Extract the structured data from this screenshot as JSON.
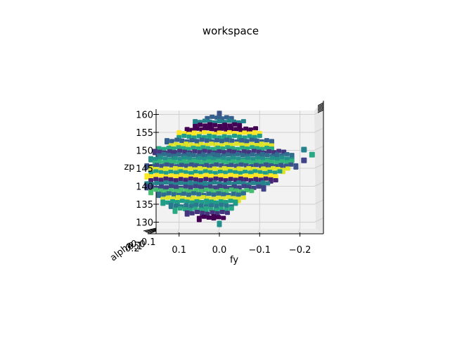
{
  "chart_data": {
    "type": "scatter",
    "projection": "3d",
    "title": "workspace",
    "xlabel": "fy",
    "ylabel": "alpha",
    "zlabel": "zp",
    "colormap": "viridis",
    "grid": true,
    "x_ticks": [
      "0.1",
      "0.0",
      "−0.1",
      "−0.2"
    ],
    "z_ticks": [
      "130",
      "135",
      "140",
      "145",
      "150",
      "155",
      "160"
    ],
    "y_ticks_overlap": [
      "0.2",
      "0.1",
      "0.0",
      "−0.1"
    ],
    "xlim": [
      0.18,
      -0.27
    ],
    "zlim": [
      128,
      161
    ],
    "rows": [
      {
        "z": 160.2,
        "x": [
          0.0,
          0.0
        ],
        "c": 0.25
      },
      {
        "z": 159.1,
        "x": [
          0.03,
          -0.03
        ],
        "c": 0.3
      },
      {
        "z": 158.0,
        "x": [
          0.06,
          -0.06
        ],
        "c": 0.45
      },
      {
        "z": 157.0,
        "x": [
          0.06,
          -0.05
        ],
        "c": 0.0
      },
      {
        "z": 155.9,
        "x": [
          0.08,
          -0.09
        ],
        "c": 0.0
      },
      {
        "z": 154.8,
        "x": [
          0.1,
          -0.1
        ],
        "c": 1.0
      },
      {
        "z": 153.8,
        "x": [
          0.1,
          -0.1
        ],
        "c": 0.55
      },
      {
        "z": 152.7,
        "x": [
          0.13,
          -0.13
        ],
        "c": 0.3
      },
      {
        "z": 151.6,
        "x": [
          0.12,
          -0.13
        ],
        "c": 0.95
      },
      {
        "z": 150.6,
        "x": [
          0.15,
          -0.13
        ],
        "c": 0.6
      },
      {
        "z": 149.6,
        "x": [
          0.16,
          -0.16
        ],
        "c": 0.15
      },
      {
        "z": 148.7,
        "x": [
          0.15,
          -0.18
        ],
        "c": 0.35
      },
      {
        "z": 147.7,
        "x": [
          0.17,
          -0.18
        ],
        "c": 0.5
      },
      {
        "z": 146.8,
        "x": [
          0.16,
          -0.18
        ],
        "c": 0.65
      },
      {
        "z": 145.8,
        "x": [
          0.18,
          -0.19
        ],
        "c": 0.25
      },
      {
        "z": 144.8,
        "x": [
          0.17,
          -0.17
        ],
        "c": 0.95
      },
      {
        "z": 143.9,
        "x": [
          0.17,
          -0.15
        ],
        "c": 0.55
      },
      {
        "z": 142.9,
        "x": [
          0.18,
          -0.14
        ],
        "c": 1.0
      },
      {
        "z": 141.9,
        "x": [
          0.17,
          -0.14
        ],
        "c": 0.1
      },
      {
        "z": 140.8,
        "x": [
          0.18,
          -0.12
        ],
        "c": 0.45
      },
      {
        "z": 139.8,
        "x": [
          0.18,
          -0.11
        ],
        "c": 0.2
      },
      {
        "z": 138.8,
        "x": [
          0.17,
          -0.08
        ],
        "c": 0.7
      },
      {
        "z": 137.8,
        "x": [
          0.15,
          -0.06
        ],
        "c": 0.35
      },
      {
        "z": 136.7,
        "x": [
          0.14,
          -0.06
        ],
        "c": 0.95
      },
      {
        "z": 135.7,
        "x": [
          0.14,
          -0.04
        ],
        "c": 0.55
      },
      {
        "z": 134.6,
        "x": [
          0.12,
          -0.03
        ],
        "c": 0.4
      },
      {
        "z": 133.6,
        "x": [
          0.11,
          -0.03
        ],
        "c": 0.6
      },
      {
        "z": 132.6,
        "x": [
          0.08,
          -0.02
        ],
        "c": 0.15
      },
      {
        "z": 131.4,
        "x": [
          0.05,
          -0.01
        ],
        "c": 0.0
      },
      {
        "z": 129.8,
        "x": [
          0.0,
          0.0
        ],
        "c": 0.5
      }
    ],
    "side_points": [
      {
        "x": -0.21,
        "z": 150.2,
        "c": 0.45
      },
      {
        "x": -0.23,
        "z": 148.8,
        "c": 0.6
      },
      {
        "x": -0.21,
        "z": 147.2,
        "c": 0.2
      }
    ]
  }
}
